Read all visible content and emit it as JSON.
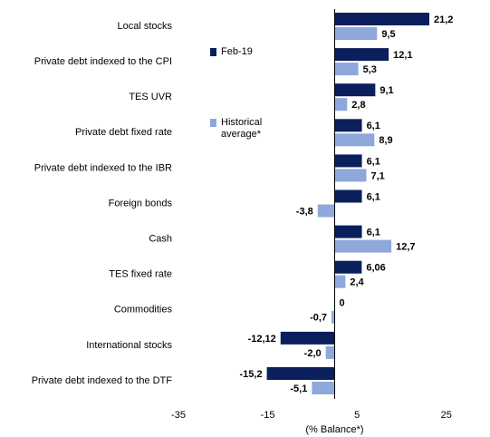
{
  "chart_data": {
    "type": "bar",
    "orientation": "horizontal",
    "categories": [
      "Local stocks",
      "Private debt indexed to the CPI",
      "TES UVR",
      "Private debt fixed rate",
      "Private debt indexed to the IBR",
      "Foreign bonds",
      "Cash",
      "TES fixed rate",
      "Commodities",
      "International stocks",
      "Private debt indexed to the DTF"
    ],
    "series": [
      {
        "name": "Feb-19",
        "color": "#0b1f5c",
        "values": [
          21.2,
          12.1,
          9.1,
          6.1,
          6.1,
          6.1,
          6.1,
          6.06,
          0,
          -12.12,
          -15.2
        ],
        "value_labels": [
          "21,2",
          "12,1",
          "9,1",
          "6,1",
          "6,1",
          "6,1",
          "6,1",
          "6,06",
          "0",
          "-12,12",
          "-15,2"
        ]
      },
      {
        "name": "Historical average*",
        "color": "#8fa8db",
        "values": [
          9.5,
          5.3,
          2.8,
          8.9,
          7.1,
          -3.8,
          12.7,
          2.4,
          -0.7,
          -2.0,
          -5.1
        ],
        "value_labels": [
          "9,5",
          "5,3",
          "2,8",
          "8,9",
          "7,1",
          "-3,8",
          "12,7",
          "2,4",
          "-0,7",
          "-2,0",
          "-5,1"
        ]
      }
    ],
    "x_label": "(% Balance*)",
    "xlim": [
      -35,
      35
    ],
    "xticks": [
      -35,
      -15,
      5,
      25
    ]
  }
}
